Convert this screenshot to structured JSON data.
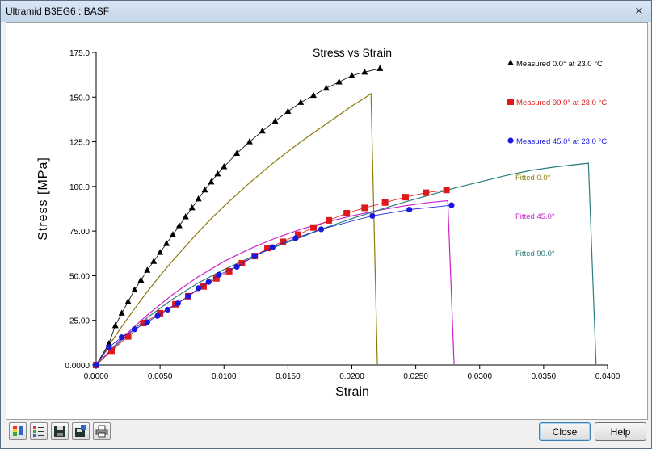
{
  "window": {
    "title": "Ultramid B3EG6 : BASF",
    "close_glyph": "✕"
  },
  "buttons": {
    "close_label": "Close",
    "help_label": "Help"
  },
  "toolbar": {
    "items": [
      {
        "name": "color-scale-icon"
      },
      {
        "name": "list-options-icon"
      },
      {
        "name": "save-icon"
      },
      {
        "name": "save-as-icon"
      },
      {
        "name": "print-icon"
      }
    ]
  },
  "chart_data": {
    "type": "scatter",
    "title": "Stress vs Strain",
    "xlabel": "Strain",
    "ylabel": "Stress  [MPa]",
    "xlim": [
      0,
      0.04
    ],
    "ylim": [
      0,
      175
    ],
    "x_ticks": [
      "0.0000",
      "0.0050",
      "0.0100",
      "0.0150",
      "0.0200",
      "0.0250",
      "0.0300",
      "0.0350",
      "0.0400"
    ],
    "y_ticks": [
      "0.0000",
      "25.00",
      "50.00",
      "75.00",
      "100.0",
      "125.0",
      "150.0",
      "175.0"
    ],
    "legend_position": "right",
    "measured": [
      {
        "name": "Measured 0.0° at 23.0 °C",
        "marker": "triangle",
        "color": "#000000",
        "points": [
          [
            0.0,
            0
          ],
          [
            0.001,
            12
          ],
          [
            0.0015,
            22
          ],
          [
            0.002,
            29
          ],
          [
            0.0025,
            35.5
          ],
          [
            0.003,
            42
          ],
          [
            0.0035,
            47.5
          ],
          [
            0.004,
            53
          ],
          [
            0.0045,
            58
          ],
          [
            0.005,
            63
          ],
          [
            0.0055,
            68
          ],
          [
            0.006,
            73
          ],
          [
            0.0065,
            78
          ],
          [
            0.007,
            83
          ],
          [
            0.0075,
            88
          ],
          [
            0.008,
            93
          ],
          [
            0.0085,
            98
          ],
          [
            0.009,
            102.5
          ],
          [
            0.0095,
            107
          ],
          [
            0.01,
            111
          ],
          [
            0.011,
            118.5
          ],
          [
            0.012,
            125
          ],
          [
            0.013,
            131
          ],
          [
            0.014,
            136.5
          ],
          [
            0.015,
            142
          ],
          [
            0.016,
            147
          ],
          [
            0.017,
            151
          ],
          [
            0.018,
            155
          ],
          [
            0.019,
            158.5
          ],
          [
            0.02,
            162
          ],
          [
            0.021,
            164
          ],
          [
            0.0222,
            166
          ]
        ]
      },
      {
        "name": "Measured 90.0° at 23.0 °C",
        "marker": "square",
        "color": "#dd1a1a",
        "points": [
          [
            0.0,
            0
          ],
          [
            0.0012,
            8
          ],
          [
            0.0025,
            16
          ],
          [
            0.0037,
            23.5
          ],
          [
            0.005,
            29
          ],
          [
            0.0062,
            34
          ],
          [
            0.0072,
            38.5
          ],
          [
            0.0084,
            44
          ],
          [
            0.0094,
            48.5
          ],
          [
            0.0104,
            52.5
          ],
          [
            0.0114,
            57
          ],
          [
            0.0124,
            61
          ],
          [
            0.0134,
            65.5
          ],
          [
            0.0146,
            69
          ],
          [
            0.0158,
            73
          ],
          [
            0.017,
            77
          ],
          [
            0.0182,
            81
          ],
          [
            0.0196,
            85
          ],
          [
            0.021,
            88
          ],
          [
            0.0226,
            91
          ],
          [
            0.0242,
            94
          ],
          [
            0.0258,
            96.5
          ],
          [
            0.0274,
            98
          ]
        ]
      },
      {
        "name": "Measured 45.0° at 23.0 °C",
        "marker": "circle",
        "color": "#1818e0",
        "points": [
          [
            0.0,
            0
          ],
          [
            0.001,
            10
          ],
          [
            0.002,
            15.5
          ],
          [
            0.003,
            20
          ],
          [
            0.004,
            24
          ],
          [
            0.0048,
            27.5
          ],
          [
            0.0056,
            31
          ],
          [
            0.0064,
            34.5
          ],
          [
            0.0072,
            38.5
          ],
          [
            0.008,
            43
          ],
          [
            0.0088,
            46.5
          ],
          [
            0.0096,
            50.5
          ],
          [
            0.011,
            55
          ],
          [
            0.0124,
            61
          ],
          [
            0.0138,
            66
          ],
          [
            0.0156,
            71
          ],
          [
            0.0176,
            76
          ],
          [
            0.0216,
            83.5
          ],
          [
            0.0245,
            87
          ],
          [
            0.0278,
            89.5
          ]
        ]
      }
    ],
    "fitted": [
      {
        "name": "Fitted 0.0°",
        "color": "#8a7a08",
        "curve": [
          [
            0,
            0
          ],
          [
            0.001,
            11
          ],
          [
            0.002,
            21.5
          ],
          [
            0.003,
            31.5
          ],
          [
            0.004,
            41
          ],
          [
            0.005,
            50
          ],
          [
            0.006,
            58.5
          ],
          [
            0.007,
            66.5
          ],
          [
            0.008,
            74.5
          ],
          [
            0.009,
            82
          ],
          [
            0.01,
            89
          ],
          [
            0.011,
            95.5
          ],
          [
            0.012,
            102
          ],
          [
            0.013,
            108
          ],
          [
            0.014,
            114
          ],
          [
            0.015,
            119.5
          ],
          [
            0.016,
            125
          ],
          [
            0.017,
            130
          ],
          [
            0.018,
            135
          ],
          [
            0.019,
            140
          ],
          [
            0.02,
            145
          ],
          [
            0.021,
            149.5
          ],
          [
            0.0215,
            152
          ]
        ],
        "drop": [
          [
            0.0215,
            152
          ],
          [
            0.022,
            0
          ]
        ]
      },
      {
        "name": "Fitted 45.0°",
        "color": "#cc22cc",
        "curve": [
          [
            0,
            0
          ],
          [
            0.002,
            15
          ],
          [
            0.004,
            28
          ],
          [
            0.006,
            39.5
          ],
          [
            0.008,
            49.5
          ],
          [
            0.01,
            58
          ],
          [
            0.012,
            65
          ],
          [
            0.014,
            71
          ],
          [
            0.016,
            76
          ],
          [
            0.018,
            80
          ],
          [
            0.02,
            83.5
          ],
          [
            0.022,
            86.5
          ],
          [
            0.024,
            89
          ],
          [
            0.026,
            91
          ],
          [
            0.0275,
            92
          ]
        ],
        "drop": [
          [
            0.0275,
            92
          ],
          [
            0.028,
            0
          ]
        ]
      },
      {
        "name": "Fitted 90.0°",
        "color": "#2a7d7d",
        "curve": [
          [
            0,
            0
          ],
          [
            0.002,
            14
          ],
          [
            0.004,
            26.5
          ],
          [
            0.006,
            37
          ],
          [
            0.008,
            46
          ],
          [
            0.01,
            53.5
          ],
          [
            0.012,
            60
          ],
          [
            0.014,
            66
          ],
          [
            0.016,
            71.5
          ],
          [
            0.018,
            77
          ],
          [
            0.02,
            82
          ],
          [
            0.022,
            86.5
          ],
          [
            0.024,
            91
          ],
          [
            0.026,
            95
          ],
          [
            0.028,
            99
          ],
          [
            0.03,
            102.5
          ],
          [
            0.032,
            106
          ],
          [
            0.034,
            109
          ],
          [
            0.036,
            111
          ],
          [
            0.0385,
            113
          ]
        ],
        "drop": [
          [
            0.0385,
            113
          ],
          [
            0.0391,
            0
          ]
        ]
      }
    ]
  }
}
